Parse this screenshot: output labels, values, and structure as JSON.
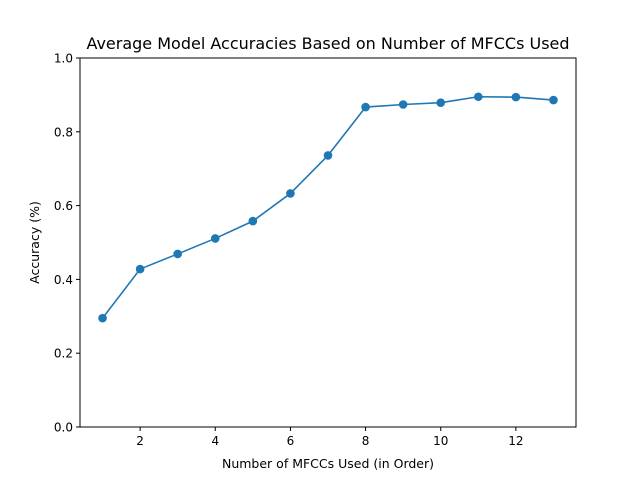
{
  "chart_data": {
    "type": "line",
    "title": "Average Model Accuracies Based on Number of MFCCs Used",
    "xlabel": "Number of MFCCs Used (in Order)",
    "ylabel": "Accuracy (%)",
    "x": [
      1,
      2,
      3,
      4,
      5,
      6,
      7,
      8,
      9,
      10,
      11,
      12,
      13
    ],
    "series": [
      {
        "values": [
          0.295,
          0.428,
          0.469,
          0.511,
          0.558,
          0.633,
          0.736,
          0.867,
          0.874,
          0.879,
          0.895,
          0.894,
          0.886
        ]
      }
    ],
    "xlim": [
      0.4,
      13.6
    ],
    "ylim": [
      0,
      1.0
    ],
    "xticks": [
      2,
      4,
      6,
      8,
      10,
      12
    ],
    "xtick_labels": [
      "2",
      "4",
      "6",
      "8",
      "10",
      "12"
    ],
    "yticks": [
      0,
      0.2,
      0.4,
      0.6,
      0.8,
      1.0
    ],
    "ytick_labels": [
      "0.0",
      "0.2",
      "0.4",
      "0.6",
      "0.8",
      "1.0"
    ],
    "grid": false,
    "markers": true,
    "colors": {
      "line": "#1f77b4",
      "axes": "#000000"
    }
  }
}
